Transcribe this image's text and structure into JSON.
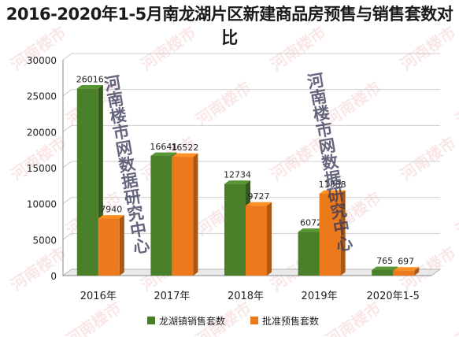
{
  "chart_data": {
    "type": "bar",
    "title": "2016-2020年1-5月南龙湖片区新建商品房预售与销售套数对比",
    "categories": [
      "2016年",
      "2017年",
      "2018年",
      "2019年",
      "2020年1-5"
    ],
    "series": [
      {
        "name": "龙湖镇销售套数",
        "values": [
          26016,
          16641,
          12734,
          6072,
          765
        ],
        "color": "#4a7f2a"
      },
      {
        "name": "批准预售套数",
        "values": [
          7940,
          16522,
          9727,
          11388,
          697
        ],
        "color": "#ec7a1c"
      }
    ],
    "value_labels": [
      [
        "26016",
        "16641",
        "12734",
        "6072",
        "765"
      ],
      [
        "7940",
        "16522",
        "9727",
        "11388",
        "697"
      ]
    ],
    "ylim": [
      0,
      30000
    ],
    "yticks": [
      "0",
      "5000",
      "10000",
      "15000",
      "20000",
      "25000",
      "30000"
    ],
    "grid": true,
    "legend_position": "bottom"
  },
  "watermark": {
    "text": "河南楼市网数据研究中心",
    "bg_text": "河南楼市"
  }
}
